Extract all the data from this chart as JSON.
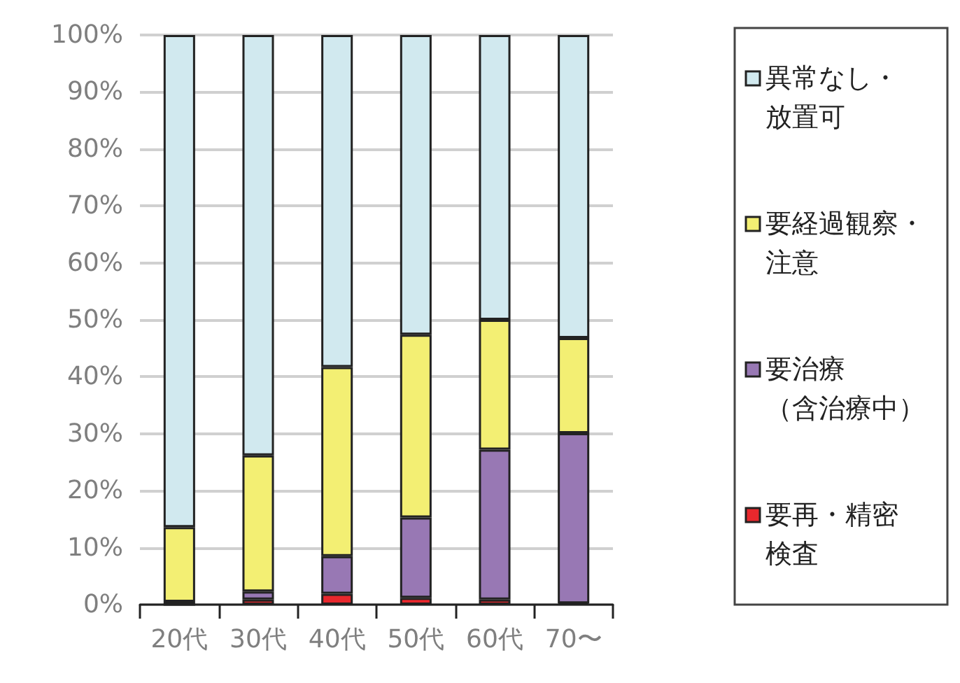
{
  "chart_data": {
    "type": "bar",
    "stacked": true,
    "categories": [
      "20代",
      "30代",
      "40代",
      "50代",
      "60代",
      "70〜"
    ],
    "series": [
      {
        "name": "要再・精密検査",
        "color": "#e8282d",
        "values": [
          0,
          0.9,
          1.9,
          1.2,
          0.9,
          0.2
        ]
      },
      {
        "name": "要治療（含治療中）",
        "color": "#9878b4",
        "values": [
          0.5,
          1.4,
          6.6,
          14.1,
          26.3,
          29.9
        ]
      },
      {
        "name": "要経過観察・注意",
        "color": "#f3ef73",
        "values": [
          13.1,
          23.9,
          33.2,
          32.1,
          22.8,
          16.7
        ]
      },
      {
        "name": "異常なし・放置可",
        "color": "#d1e9ef",
        "values": [
          86.4,
          73.8,
          58.3,
          52.6,
          50,
          53.2
        ]
      }
    ],
    "ylim": [
      0,
      100
    ],
    "yticks": [
      {
        "value": 0,
        "label": "0%"
      },
      {
        "value": 10,
        "label": "10%"
      },
      {
        "value": 20,
        "label": "20%"
      },
      {
        "value": 30,
        "label": "30%"
      },
      {
        "value": 40,
        "label": "40%"
      },
      {
        "value": 50,
        "label": "50%"
      },
      {
        "value": 60,
        "label": "60%"
      },
      {
        "value": 70,
        "label": "70%"
      },
      {
        "value": 80,
        "label": "80%"
      },
      {
        "value": 90,
        "label": "90%"
      },
      {
        "value": 100,
        "label": "100%"
      }
    ],
    "grid": "y",
    "legend": "right"
  }
}
